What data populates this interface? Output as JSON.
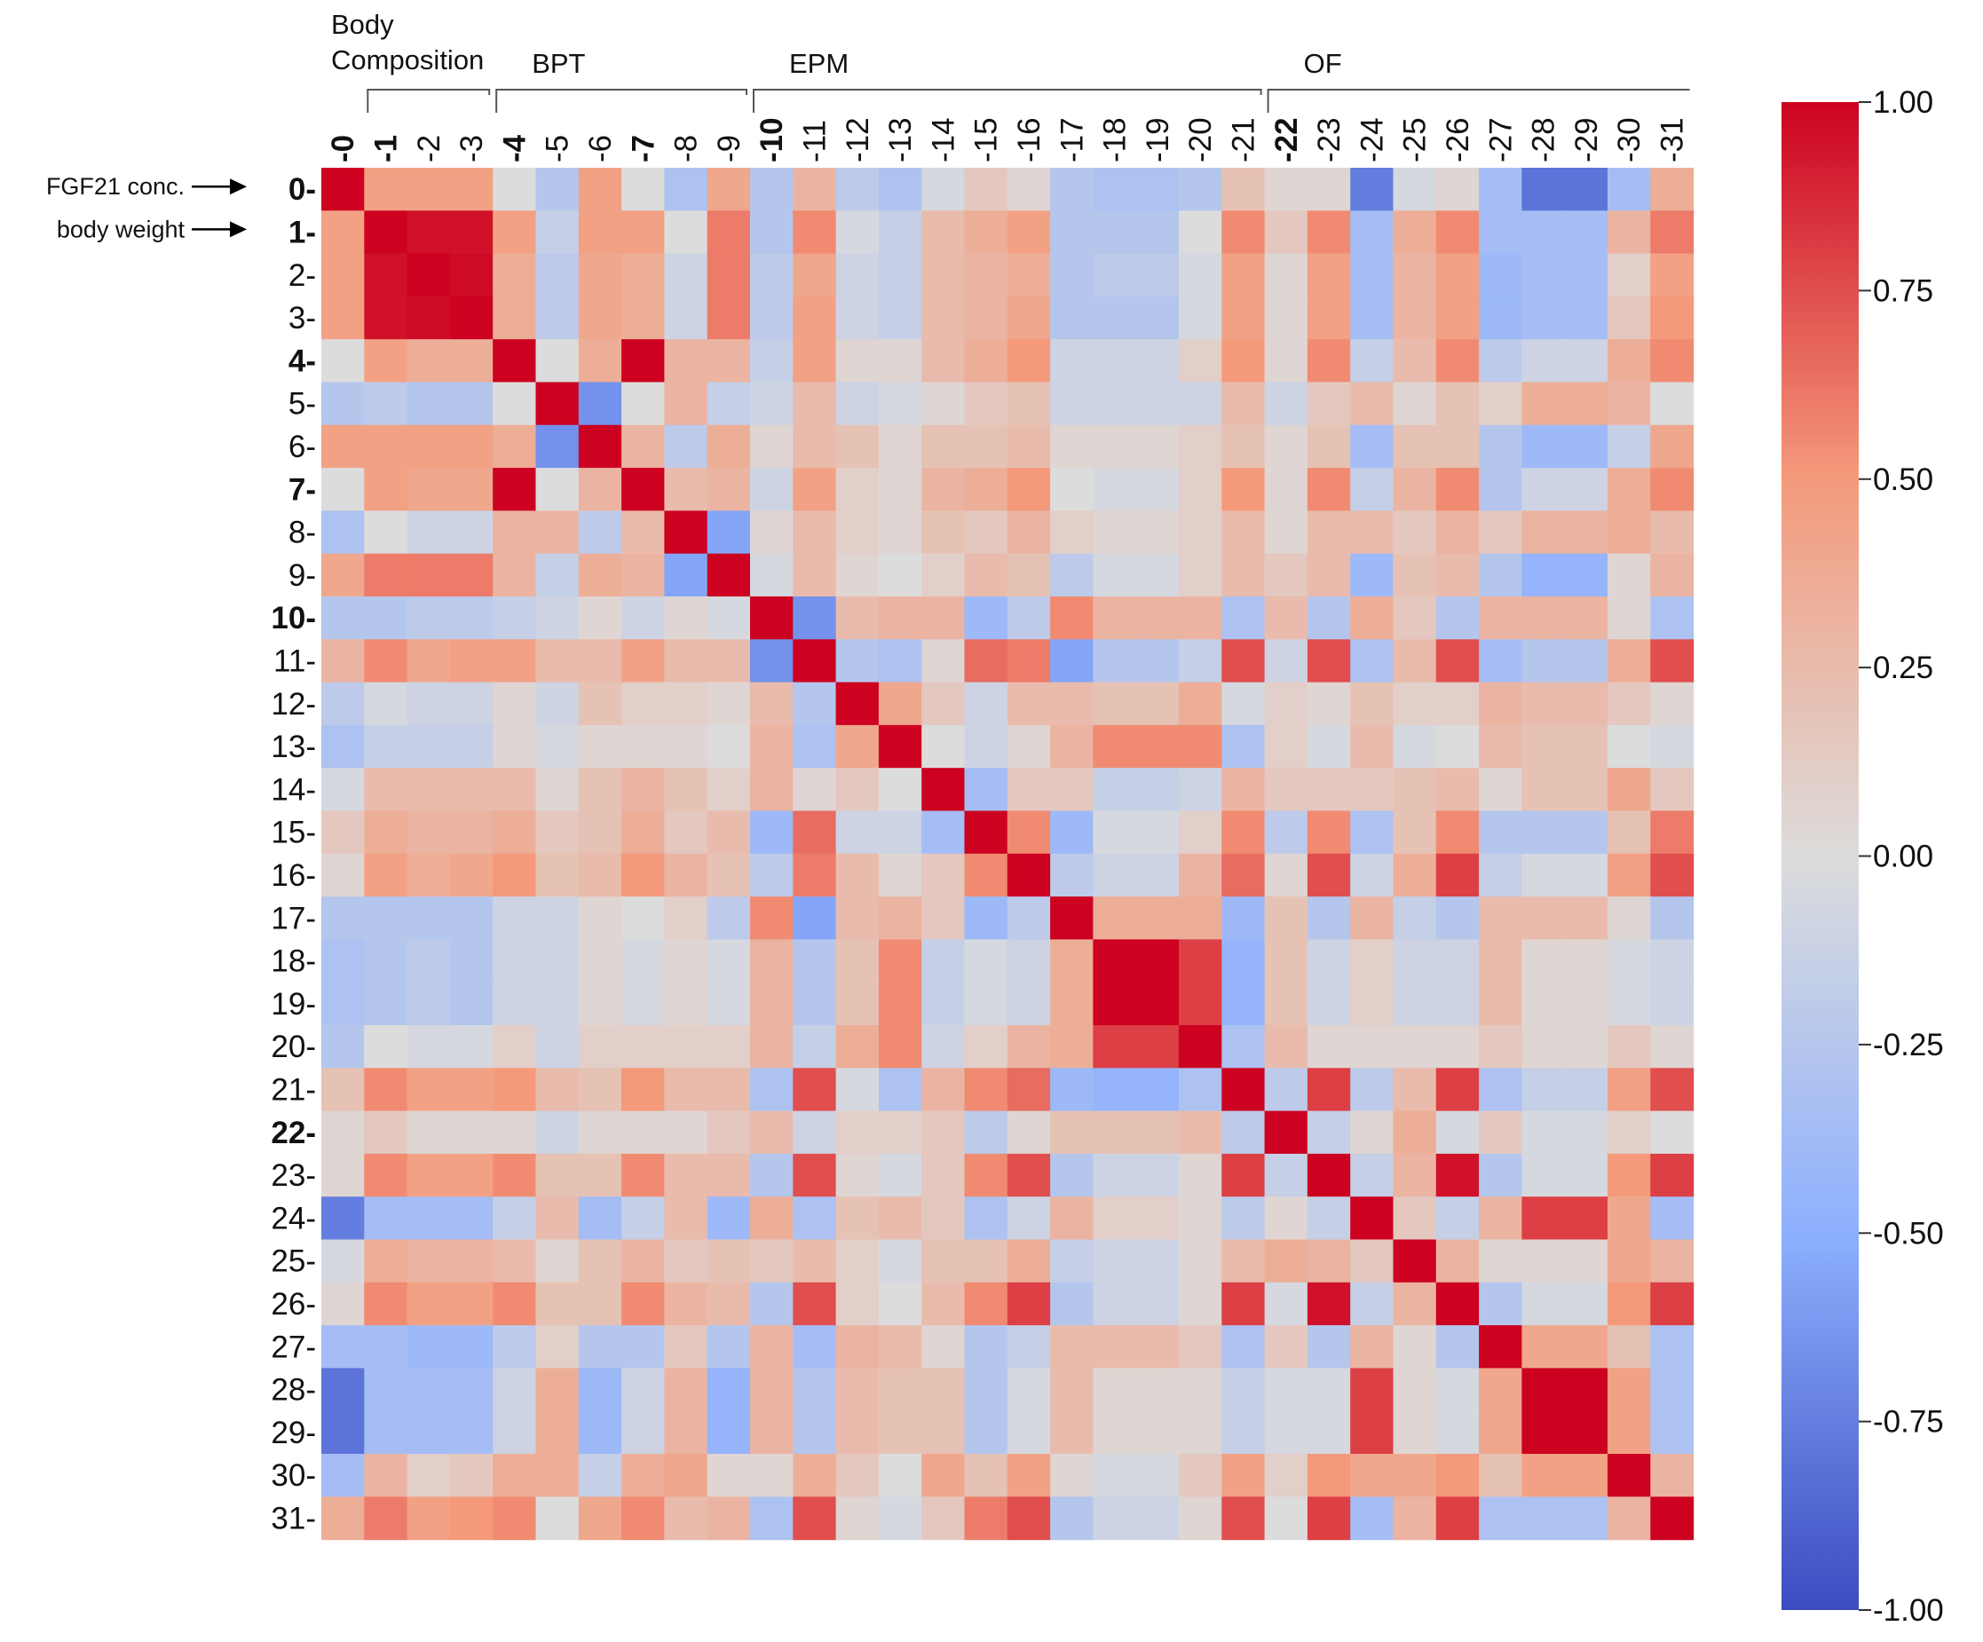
{
  "chart_data": {
    "type": "heatmap",
    "title": "",
    "xlabel": "",
    "ylabel": "",
    "row_labels": [
      "0-",
      "1-",
      "2-",
      "3-",
      "4-",
      "5-",
      "6-",
      "7-",
      "8-",
      "9-",
      "10-",
      "11-",
      "12-",
      "13-",
      "14-",
      "15-",
      "16-",
      "17-",
      "18-",
      "19-",
      "20-",
      "21-",
      "22-",
      "23-",
      "24-",
      "25-",
      "26-",
      "27-",
      "28-",
      "29-",
      "30-",
      "31-"
    ],
    "col_labels": [
      "-0",
      "-1",
      "-2",
      "-3",
      "-4",
      "-5",
      "-6",
      "-7",
      "-8",
      "-9",
      "-10",
      "-11",
      "-12",
      "-13",
      "-14",
      "-15",
      "-16",
      "-17",
      "-18",
      "-19",
      "-20",
      "-21",
      "-22",
      "-23",
      "-24",
      "-25",
      "-26",
      "-27",
      "-28",
      "-29",
      "-30",
      "-31"
    ],
    "bold_indices": [
      0,
      1,
      4,
      7,
      10,
      22
    ],
    "groups": [
      {
        "label": "Body Composition",
        "start": 1,
        "end": 3
      },
      {
        "label": "BPT",
        "start": 4,
        "end": 9
      },
      {
        "label": "EPM",
        "start": 10,
        "end": 21
      },
      {
        "label": "OF",
        "start": 22,
        "end": 31
      }
    ],
    "row_annotations": [
      {
        "label": "FGF21 conc.",
        "row": 0
      },
      {
        "label": "body weight",
        "row": 1
      }
    ],
    "colorbar": {
      "min": -1.0,
      "max": 1.0,
      "ticks": [
        "1.00",
        "0.75",
        "0.50",
        "0.25",
        "0.00",
        "-0.25",
        "-0.50",
        "-0.75",
        "-1.00"
      ],
      "tick_values": [
        1.0,
        0.75,
        0.5,
        0.25,
        0.0,
        -0.25,
        -0.5,
        -0.75,
        -1.0
      ],
      "colors": [
        "#3b4cc0",
        "#8db0fe",
        "#dddcdc",
        "#f49a7b",
        "#cc0220"
      ]
    },
    "values": [
      [
        1.0,
        0.45,
        0.45,
        0.45,
        0.0,
        -0.25,
        0.45,
        0.0,
        -0.3,
        0.4,
        -0.25,
        0.3,
        -0.2,
        -0.3,
        -0.05,
        0.15,
        0.05,
        -0.25,
        -0.3,
        -0.3,
        -0.25,
        0.2,
        0.05,
        0.05,
        -0.75,
        -0.05,
        0.05,
        -0.35,
        -0.8,
        -0.8,
        -0.35,
        0.35
      ],
      [
        0.45,
        1.0,
        0.95,
        0.95,
        0.45,
        -0.15,
        0.45,
        0.45,
        0.0,
        0.6,
        -0.25,
        0.55,
        -0.05,
        -0.15,
        0.25,
        0.35,
        0.45,
        -0.25,
        -0.25,
        -0.25,
        0.0,
        0.55,
        0.15,
        0.55,
        -0.35,
        0.35,
        0.55,
        -0.35,
        -0.35,
        -0.35,
        0.3,
        0.6
      ],
      [
        0.45,
        0.95,
        1.0,
        0.97,
        0.35,
        -0.2,
        0.4,
        0.35,
        -0.1,
        0.6,
        -0.2,
        0.4,
        -0.1,
        -0.15,
        0.25,
        0.3,
        0.35,
        -0.25,
        -0.2,
        -0.2,
        -0.05,
        0.45,
        0.05,
        0.45,
        -0.35,
        0.3,
        0.45,
        -0.4,
        -0.35,
        -0.35,
        0.1,
        0.45
      ],
      [
        0.45,
        0.95,
        0.97,
        1.0,
        0.35,
        -0.2,
        0.4,
        0.35,
        -0.1,
        0.6,
        -0.2,
        0.45,
        -0.1,
        -0.15,
        0.25,
        0.3,
        0.4,
        -0.25,
        -0.25,
        -0.25,
        -0.05,
        0.45,
        0.05,
        0.45,
        -0.35,
        0.3,
        0.45,
        -0.4,
        -0.35,
        -0.35,
        0.15,
        0.5
      ],
      [
        0.0,
        0.45,
        0.35,
        0.35,
        1.0,
        0.0,
        0.35,
        1.0,
        0.3,
        0.3,
        -0.15,
        0.45,
        0.05,
        0.05,
        0.25,
        0.35,
        0.5,
        -0.1,
        -0.1,
        -0.1,
        0.1,
        0.5,
        0.05,
        0.55,
        -0.15,
        0.25,
        0.55,
        -0.2,
        -0.1,
        -0.1,
        0.35,
        0.55
      ],
      [
        -0.25,
        -0.2,
        -0.25,
        -0.25,
        0.0,
        1.0,
        -0.65,
        0.0,
        0.3,
        -0.15,
        -0.1,
        0.25,
        -0.1,
        -0.05,
        0.05,
        0.15,
        0.2,
        -0.1,
        -0.1,
        -0.1,
        -0.1,
        0.25,
        -0.1,
        0.15,
        0.25,
        0.05,
        0.2,
        0.1,
        0.35,
        0.35,
        0.3,
        0.0
      ],
      [
        0.45,
        0.45,
        0.45,
        0.45,
        0.35,
        -0.65,
        1.0,
        0.3,
        -0.2,
        0.35,
        0.05,
        0.25,
        0.2,
        0.05,
        0.2,
        0.2,
        0.25,
        0.05,
        0.05,
        0.05,
        0.1,
        0.2,
        0.05,
        0.2,
        -0.35,
        0.2,
        0.2,
        -0.25,
        -0.4,
        -0.4,
        -0.15,
        0.4
      ],
      [
        0.0,
        0.45,
        0.4,
        0.4,
        1.0,
        0.0,
        0.3,
        1.0,
        0.25,
        0.3,
        -0.1,
        0.45,
        0.1,
        0.05,
        0.3,
        0.35,
        0.5,
        0.0,
        -0.05,
        -0.05,
        0.1,
        0.5,
        0.05,
        0.55,
        -0.15,
        0.3,
        0.55,
        -0.25,
        -0.1,
        -0.1,
        0.35,
        0.55
      ],
      [
        -0.3,
        0.0,
        -0.1,
        -0.1,
        0.3,
        0.3,
        -0.2,
        0.25,
        1.0,
        -0.55,
        0.05,
        0.25,
        0.1,
        0.05,
        0.2,
        0.15,
        0.3,
        0.1,
        0.05,
        0.05,
        0.1,
        0.25,
        0.05,
        0.25,
        0.25,
        0.15,
        0.3,
        0.15,
        0.3,
        0.3,
        0.35,
        0.25
      ],
      [
        0.4,
        0.6,
        0.6,
        0.6,
        0.3,
        -0.15,
        0.35,
        0.3,
        -0.55,
        1.0,
        -0.05,
        0.25,
        0.05,
        0.0,
        0.1,
        0.25,
        0.2,
        -0.2,
        -0.05,
        -0.05,
        0.1,
        0.25,
        0.15,
        0.25,
        -0.4,
        0.2,
        0.25,
        -0.25,
        -0.45,
        -0.45,
        0.05,
        0.3
      ],
      [
        -0.25,
        -0.25,
        -0.2,
        -0.2,
        -0.15,
        -0.1,
        0.05,
        -0.1,
        0.05,
        -0.05,
        1.0,
        -0.65,
        0.25,
        0.3,
        0.3,
        -0.4,
        -0.2,
        0.55,
        0.3,
        0.3,
        0.3,
        -0.3,
        0.25,
        -0.25,
        0.35,
        0.15,
        -0.25,
        0.3,
        0.3,
        0.3,
        0.05,
        -0.3
      ],
      [
        0.3,
        0.55,
        0.4,
        0.45,
        0.45,
        0.25,
        0.25,
        0.45,
        0.25,
        0.25,
        -0.65,
        1.0,
        -0.25,
        -0.3,
        0.05,
        0.65,
        0.6,
        -0.55,
        -0.25,
        -0.25,
        -0.15,
        0.75,
        -0.1,
        0.75,
        -0.3,
        0.25,
        0.75,
        -0.35,
        -0.25,
        -0.25,
        0.35,
        0.75
      ],
      [
        -0.2,
        -0.05,
        -0.1,
        -0.1,
        0.05,
        -0.1,
        0.2,
        0.1,
        0.1,
        0.05,
        0.25,
        -0.25,
        1.0,
        0.4,
        0.15,
        -0.1,
        0.25,
        0.25,
        0.2,
        0.2,
        0.35,
        -0.05,
        0.1,
        0.05,
        0.2,
        0.1,
        0.1,
        0.3,
        0.25,
        0.25,
        0.15,
        0.05
      ],
      [
        -0.3,
        -0.15,
        -0.15,
        -0.15,
        0.05,
        -0.05,
        0.05,
        0.05,
        0.05,
        0.0,
        0.3,
        -0.3,
        0.4,
        1.0,
        0.0,
        -0.1,
        0.05,
        0.3,
        0.55,
        0.55,
        0.55,
        -0.3,
        0.1,
        -0.05,
        0.25,
        -0.05,
        0.0,
        0.25,
        0.2,
        0.2,
        0.0,
        -0.05
      ],
      [
        -0.05,
        0.25,
        0.25,
        0.25,
        0.25,
        0.05,
        0.2,
        0.3,
        0.2,
        0.1,
        0.3,
        0.05,
        0.15,
        0.0,
        1.0,
        -0.35,
        0.15,
        0.15,
        -0.15,
        -0.15,
        -0.1,
        0.3,
        0.15,
        0.15,
        0.15,
        0.2,
        0.25,
        0.05,
        0.2,
        0.2,
        0.4,
        0.15
      ],
      [
        0.15,
        0.35,
        0.3,
        0.3,
        0.35,
        0.15,
        0.2,
        0.35,
        0.15,
        0.25,
        -0.4,
        0.65,
        -0.1,
        -0.1,
        -0.35,
        1.0,
        0.55,
        -0.4,
        -0.05,
        -0.05,
        0.1,
        0.55,
        -0.2,
        0.55,
        -0.3,
        0.2,
        0.55,
        -0.25,
        -0.25,
        -0.25,
        0.2,
        0.6
      ],
      [
        0.05,
        0.45,
        0.35,
        0.4,
        0.5,
        0.2,
        0.25,
        0.5,
        0.3,
        0.2,
        -0.2,
        0.6,
        0.25,
        0.05,
        0.15,
        0.55,
        1.0,
        -0.2,
        -0.1,
        -0.1,
        0.3,
        0.65,
        0.05,
        0.75,
        -0.1,
        0.35,
        0.8,
        -0.15,
        -0.05,
        -0.05,
        0.45,
        0.75
      ],
      [
        -0.25,
        -0.25,
        -0.25,
        -0.25,
        -0.1,
        -0.1,
        0.05,
        0.0,
        0.1,
        -0.2,
        0.55,
        -0.55,
        0.25,
        0.3,
        0.15,
        -0.4,
        -0.2,
        1.0,
        0.35,
        0.35,
        0.35,
        -0.4,
        0.2,
        -0.25,
        0.3,
        -0.15,
        -0.25,
        0.25,
        0.25,
        0.25,
        0.05,
        -0.25
      ],
      [
        -0.3,
        -0.25,
        -0.2,
        -0.25,
        -0.1,
        -0.1,
        0.05,
        -0.05,
        0.05,
        -0.05,
        0.3,
        -0.25,
        0.2,
        0.55,
        -0.15,
        -0.05,
        -0.1,
        0.35,
        1.0,
        1.0,
        0.8,
        -0.45,
        0.2,
        -0.1,
        0.1,
        -0.1,
        -0.1,
        0.25,
        0.05,
        0.05,
        -0.05,
        -0.1
      ],
      [
        -0.3,
        -0.25,
        -0.2,
        -0.25,
        -0.1,
        -0.1,
        0.05,
        -0.05,
        0.05,
        -0.05,
        0.3,
        -0.25,
        0.2,
        0.55,
        -0.15,
        -0.05,
        -0.1,
        0.35,
        1.0,
        1.0,
        0.8,
        -0.45,
        0.2,
        -0.1,
        0.1,
        -0.1,
        -0.1,
        0.25,
        0.05,
        0.05,
        -0.05,
        -0.1
      ],
      [
        -0.25,
        0.0,
        -0.05,
        -0.05,
        0.1,
        -0.1,
        0.1,
        0.1,
        0.1,
        0.1,
        0.3,
        -0.15,
        0.35,
        0.55,
        -0.1,
        0.1,
        0.3,
        0.35,
        0.8,
        0.8,
        1.0,
        -0.3,
        0.25,
        0.05,
        0.05,
        0.05,
        0.05,
        0.15,
        0.05,
        0.05,
        0.15,
        0.05
      ],
      [
        0.2,
        0.55,
        0.45,
        0.45,
        0.5,
        0.25,
        0.2,
        0.5,
        0.25,
        0.25,
        -0.3,
        0.75,
        -0.05,
        -0.3,
        0.3,
        0.55,
        0.65,
        -0.4,
        -0.45,
        -0.45,
        -0.3,
        1.0,
        -0.2,
        0.8,
        -0.2,
        0.25,
        0.8,
        -0.3,
        -0.15,
        -0.15,
        0.45,
        0.75
      ],
      [
        0.05,
        0.15,
        0.05,
        0.05,
        0.05,
        -0.1,
        0.05,
        0.05,
        0.05,
        0.15,
        0.25,
        -0.1,
        0.1,
        0.1,
        0.15,
        -0.2,
        0.05,
        0.2,
        0.2,
        0.2,
        0.25,
        -0.2,
        1.0,
        -0.15,
        0.05,
        0.35,
        -0.05,
        0.15,
        -0.05,
        -0.05,
        0.1,
        0.0
      ],
      [
        0.05,
        0.55,
        0.45,
        0.45,
        0.55,
        0.2,
        0.2,
        0.55,
        0.25,
        0.25,
        -0.25,
        0.75,
        0.05,
        -0.05,
        0.15,
        0.55,
        0.75,
        -0.25,
        -0.1,
        -0.1,
        0.05,
        0.8,
        -0.15,
        1.0,
        -0.15,
        0.3,
        0.95,
        -0.25,
        -0.05,
        -0.05,
        0.5,
        0.8
      ],
      [
        -0.75,
        -0.35,
        -0.35,
        -0.35,
        -0.15,
        0.25,
        -0.35,
        -0.15,
        0.25,
        -0.4,
        0.35,
        -0.3,
        0.2,
        0.25,
        0.15,
        -0.3,
        -0.1,
        0.3,
        0.1,
        0.1,
        0.05,
        -0.2,
        0.05,
        -0.15,
        1.0,
        0.15,
        -0.15,
        0.3,
        0.8,
        0.8,
        0.4,
        -0.35
      ],
      [
        -0.05,
        0.35,
        0.3,
        0.3,
        0.25,
        0.05,
        0.2,
        0.3,
        0.15,
        0.2,
        0.15,
        0.25,
        0.1,
        -0.05,
        0.2,
        0.2,
        0.35,
        -0.15,
        -0.1,
        -0.1,
        0.05,
        0.25,
        0.35,
        0.3,
        0.15,
        1.0,
        0.3,
        0.05,
        0.05,
        0.05,
        0.4,
        0.3
      ],
      [
        0.05,
        0.55,
        0.45,
        0.45,
        0.55,
        0.2,
        0.2,
        0.55,
        0.3,
        0.25,
        -0.25,
        0.75,
        0.1,
        0.0,
        0.25,
        0.55,
        0.8,
        -0.25,
        -0.1,
        -0.1,
        0.05,
        0.8,
        -0.05,
        0.95,
        -0.15,
        0.3,
        1.0,
        -0.25,
        -0.05,
        -0.05,
        0.5,
        0.8
      ],
      [
        -0.35,
        -0.35,
        -0.4,
        -0.4,
        -0.2,
        0.1,
        -0.25,
        -0.25,
        0.15,
        -0.25,
        0.3,
        -0.35,
        0.3,
        0.25,
        0.05,
        -0.25,
        -0.15,
        0.25,
        0.25,
        0.25,
        0.15,
        -0.3,
        0.15,
        -0.25,
        0.3,
        0.05,
        -0.25,
        1.0,
        0.4,
        0.4,
        0.2,
        -0.3
      ],
      [
        -0.8,
        -0.35,
        -0.35,
        -0.35,
        -0.1,
        0.35,
        -0.4,
        -0.1,
        0.3,
        -0.45,
        0.3,
        -0.25,
        0.25,
        0.2,
        0.2,
        -0.25,
        -0.05,
        0.25,
        0.05,
        0.05,
        0.05,
        -0.15,
        -0.05,
        -0.05,
        0.8,
        0.05,
        -0.05,
        0.4,
        1.0,
        1.0,
        0.45,
        -0.3
      ],
      [
        -0.8,
        -0.35,
        -0.35,
        -0.35,
        -0.1,
        0.35,
        -0.4,
        -0.1,
        0.3,
        -0.45,
        0.3,
        -0.25,
        0.25,
        0.2,
        0.2,
        -0.25,
        -0.05,
        0.25,
        0.05,
        0.05,
        0.05,
        -0.15,
        -0.05,
        -0.05,
        0.8,
        0.05,
        -0.05,
        0.4,
        1.0,
        1.0,
        0.45,
        -0.3
      ],
      [
        -0.35,
        0.3,
        0.1,
        0.15,
        0.35,
        0.35,
        -0.15,
        0.35,
        0.4,
        0.05,
        0.05,
        0.35,
        0.15,
        0.0,
        0.4,
        0.2,
        0.45,
        0.05,
        -0.05,
        -0.05,
        0.15,
        0.45,
        0.1,
        0.5,
        0.4,
        0.4,
        0.5,
        0.2,
        0.45,
        0.45,
        1.0,
        0.3
      ],
      [
        0.35,
        0.6,
        0.45,
        0.5,
        0.55,
        0.0,
        0.4,
        0.55,
        0.25,
        0.3,
        -0.3,
        0.75,
        0.05,
        -0.05,
        0.15,
        0.6,
        0.75,
        -0.25,
        -0.1,
        -0.1,
        0.05,
        0.75,
        0.0,
        0.8,
        -0.35,
        0.3,
        0.8,
        -0.3,
        -0.3,
        -0.3,
        0.3,
        1.0
      ]
    ]
  }
}
